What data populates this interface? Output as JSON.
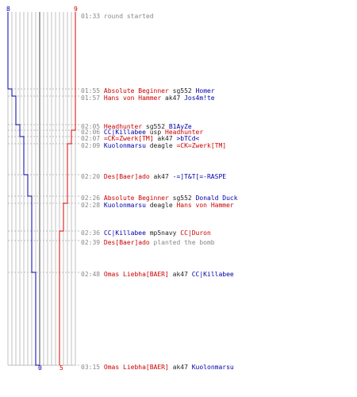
{
  "colors": {
    "team_t": "#dd0000",
    "team_ct": "#0000aa",
    "grid": "#c0c0c0",
    "time": "#888888",
    "weapon": "#222222"
  },
  "scores": {
    "ct_start": "8",
    "t_start": "9",
    "ct_end": "0",
    "t_end": "5"
  },
  "events": [
    {
      "time": "01:33",
      "note": "round started"
    },
    {
      "time": "01:55",
      "killer": "Absolute Beginner",
      "killer_team": "t",
      "weapon": "sg552",
      "victim": "Homer",
      "victim_team": "ct"
    },
    {
      "time": "01:57",
      "killer": "Hans von Hammer",
      "killer_team": "t",
      "weapon": "ak47",
      "victim": "Jos4m!te",
      "victim_team": "ct"
    },
    {
      "time": "02:05",
      "killer": "Headhunter",
      "killer_team": "t",
      "weapon": "sg552",
      "victim": "B1AyZe",
      "victim_team": "ct"
    },
    {
      "time": "02:06",
      "killer": "CC|Killabee",
      "killer_team": "ct",
      "weapon": "usp",
      "victim": "Headhunter",
      "victim_team": "t"
    },
    {
      "time": "02:07",
      "killer": "=CK=Zwerk[TM]",
      "killer_team": "t",
      "weapon": "ak47",
      "victim": ">bTCd<",
      "victim_team": "ct"
    },
    {
      "time": "02:09",
      "killer": "Kuolonmarsu",
      "killer_team": "ct",
      "weapon": "deagle",
      "victim": "=CK=Zwerk[TM]",
      "victim_team": "t"
    },
    {
      "time": "02:20",
      "killer": "Des[Baer]ado",
      "killer_team": "t",
      "weapon": "ak47",
      "victim": "-=]T&T[=-RASPE",
      "victim_team": "ct"
    },
    {
      "time": "02:26",
      "killer": "Absolute Beginner",
      "killer_team": "t",
      "weapon": "sg552",
      "victim": "Donald Duck",
      "victim_team": "ct"
    },
    {
      "time": "02:28",
      "killer": "Kuolonmarsu",
      "killer_team": "ct",
      "weapon": "deagle",
      "victim": "Hans von Hammer",
      "victim_team": "t"
    },
    {
      "time": "02:36",
      "killer": "CC|Killabee",
      "killer_team": "ct",
      "weapon": "mp5navy",
      "victim": "CC|Duron",
      "victim_team": "t"
    },
    {
      "time": "02:39",
      "killer": "Des[Baer]ado",
      "killer_team": "t",
      "note": "planted the bomb"
    },
    {
      "time": "02:48",
      "killer": "Omas Liebha[BAER]",
      "killer_team": "t",
      "weapon": "ak47",
      "victim": "CC|Killabee",
      "victim_team": "ct"
    },
    {
      "time": "03:15",
      "killer": "Omas Liebha[BAER]",
      "killer_team": "t",
      "weapon": "ak47",
      "victim": "Kuolonmarsu",
      "victim_team": "ct"
    }
  ]
}
